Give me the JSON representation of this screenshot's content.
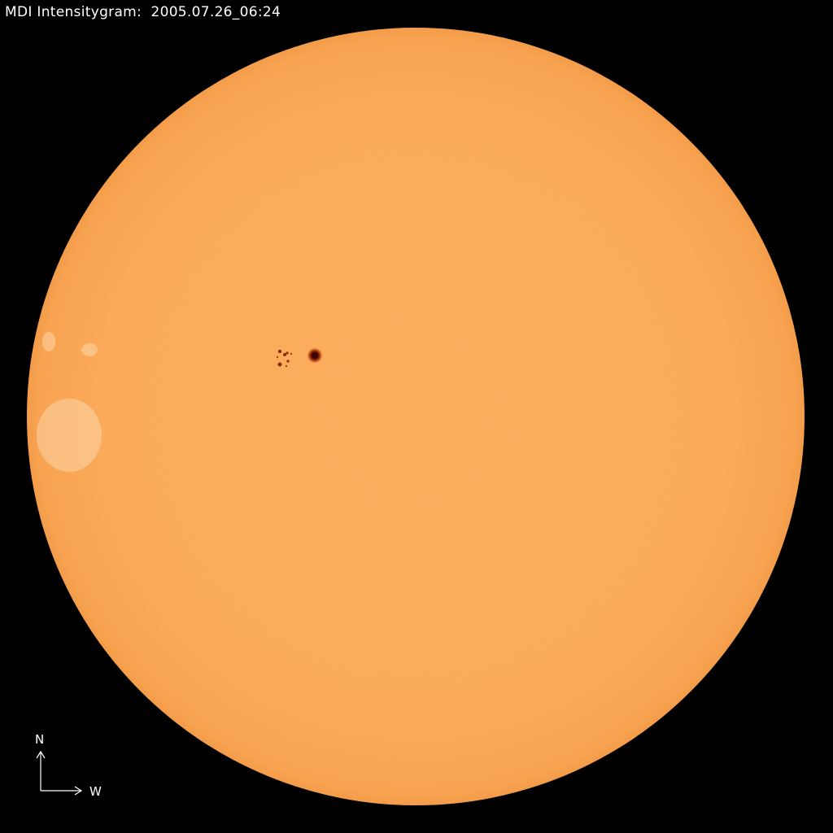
{
  "title": "MDI Intensitygram:  2005.07.26_06:24",
  "compass": {
    "north": "N",
    "west": "W"
  },
  "colors": {
    "background": "#000000",
    "photosphere": "#fcaa5c",
    "limb": "#f39a48",
    "sunspot_umbra": "#4a0a00",
    "sunspot_penumbra": "#c0501a",
    "text": "#ffffff"
  }
}
